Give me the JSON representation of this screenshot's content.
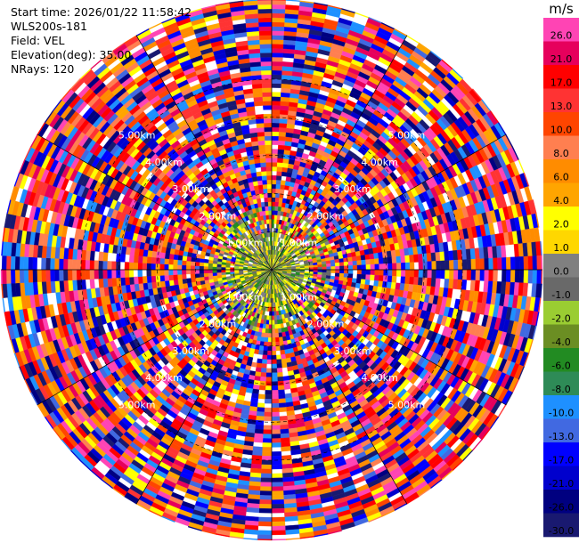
{
  "header": {
    "start_time": "Start time: 2026/01/22 11:58:42",
    "instrument": "WLS200s-181",
    "field": "Field: VEL",
    "elevation": "Elevation(deg): 35.00",
    "nrays": "NRays: 120"
  },
  "chart_data": {
    "type": "polar-ppi",
    "field": "VEL",
    "units": "m/s",
    "elevation_deg": 35.0,
    "nrays": 120,
    "range_rings_km": [
      1,
      2,
      3,
      4,
      5
    ],
    "range_ring_labels": [
      "1.00km",
      "2.00km",
      "3.00km",
      "4.00km",
      "5.00km"
    ],
    "max_range_km": 7.1,
    "spokes_deg": [
      0,
      30,
      60,
      90,
      120,
      150,
      180,
      210,
      240,
      270,
      300,
      330
    ],
    "colorbar": {
      "unit_label": "m/s",
      "bins": [
        {
          "label": "26.0",
          "color": "#ff44b4"
        },
        {
          "label": "21.0",
          "color": "#e6005c"
        },
        {
          "label": "17.0",
          "color": "#ff0000"
        },
        {
          "label": "13.0",
          "color": "#ff3333"
        },
        {
          "label": "10.0",
          "color": "#ff4500"
        },
        {
          "label": "8.0",
          "color": "#ff7f50"
        },
        {
          "label": "6.0",
          "color": "#ff8c00"
        },
        {
          "label": "4.0",
          "color": "#ffa500"
        },
        {
          "label": "2.0",
          "color": "#ffff00"
        },
        {
          "label": "1.0",
          "color": "#ffd700"
        },
        {
          "label": "0.0",
          "color": "#808080"
        },
        {
          "label": "-1.0",
          "color": "#696969"
        },
        {
          "label": "-2.0",
          "color": "#9acd32"
        },
        {
          "label": "-4.0",
          "color": "#6b8e23"
        },
        {
          "label": "-6.0",
          "color": "#228b22"
        },
        {
          "label": "-8.0",
          "color": "#2e8b57"
        },
        {
          "label": "-10.0",
          "color": "#1e90ff"
        },
        {
          "label": "-13.0",
          "color": "#4169e1"
        },
        {
          "label": "-17.0",
          "color": "#0000ff"
        },
        {
          "label": "-21.0",
          "color": "#0000cd"
        },
        {
          "label": "-26.0",
          "color": "#000080"
        },
        {
          "label": "-30.0",
          "color": "#191970"
        }
      ]
    }
  }
}
